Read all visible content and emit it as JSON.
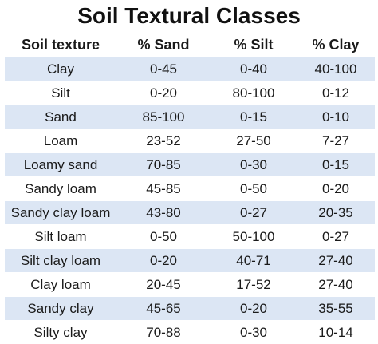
{
  "title": "Soil Textural Classes",
  "table": {
    "headers": [
      "Soil texture",
      "% Sand",
      "% Silt",
      "% Clay"
    ],
    "rows": [
      [
        "Clay",
        "0-45",
        "0-40",
        "40-100"
      ],
      [
        "Silt",
        "0-20",
        "80-100",
        "0-12"
      ],
      [
        "Sand",
        "85-100",
        "0-15",
        "0-10"
      ],
      [
        "Loam",
        "23-52",
        "27-50",
        "7-27"
      ],
      [
        "Loamy sand",
        "70-85",
        "0-30",
        "0-15"
      ],
      [
        "Sandy loam",
        "45-85",
        "0-50",
        "0-20"
      ],
      [
        "Sandy clay loam",
        "43-80",
        "0-27",
        "20-35"
      ],
      [
        "Silt loam",
        "0-50",
        "50-100",
        "0-27"
      ],
      [
        "Silt clay loam",
        "0-20",
        "40-71",
        "27-40"
      ],
      [
        "Clay loam",
        "20-45",
        "17-52",
        "27-40"
      ],
      [
        "Sandy clay",
        "45-65",
        "0-20",
        "35-55"
      ],
      [
        "Silty clay",
        "70-88",
        "0-30",
        "10-14"
      ]
    ]
  },
  "colors": {
    "stripe": "#dce6f4",
    "background": "#ffffff",
    "text": "#1a1a1a"
  }
}
